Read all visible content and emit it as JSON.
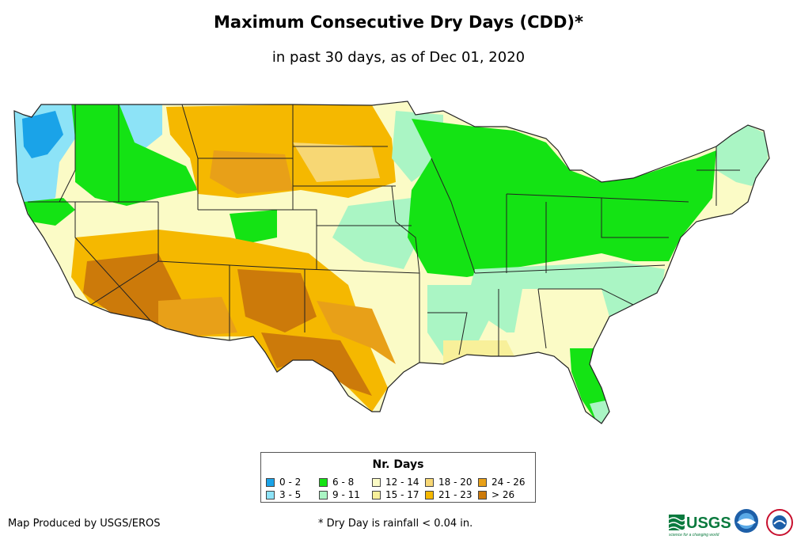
{
  "header": {
    "title": "Maximum Consecutive Dry Days (CDD)*",
    "subtitle": "in past 30 days, as of Dec 01, 2020"
  },
  "legend": {
    "title": "Nr. Days",
    "classes": [
      {
        "label": "0 - 2",
        "color": "#1aa3e8"
      },
      {
        "label": "3 - 5",
        "color": "#8de3f7"
      },
      {
        "label": "6 - 8",
        "color": "#14e314"
      },
      {
        "label": "9 - 11",
        "color": "#aaf5c4"
      },
      {
        "label": "12 - 14",
        "color": "#fbfbc6"
      },
      {
        "label": "15 - 17",
        "color": "#f8f09a"
      },
      {
        "label": "18 - 20",
        "color": "#f7d774"
      },
      {
        "label": "21 - 23",
        "color": "#f5b800"
      },
      {
        "label": "24 - 26",
        "color": "#e8a018"
      },
      {
        "label": "> 26",
        "color": "#cc7a0a"
      }
    ]
  },
  "footer": {
    "credit": "Map Produced by USGS/EROS",
    "footnote": "* Dry Day is rainfall < 0.04 in.",
    "logo_text": "USGS",
    "logo_tagline": "science for a changing world"
  }
}
